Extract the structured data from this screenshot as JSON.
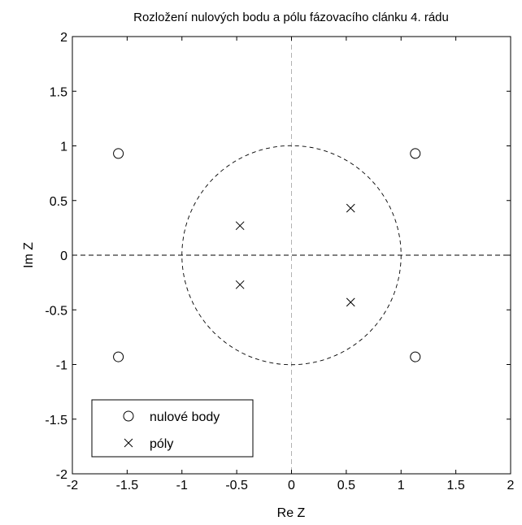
{
  "chart_data": {
    "type": "scatter",
    "title": "Rozložení nulových bodu a pólu fázovacího clánku 4. rádu",
    "xlabel": "Re Z",
    "ylabel": "Im Z",
    "xlim": [
      -2,
      2
    ],
    "ylim": [
      -2,
      2
    ],
    "xticks": [
      -2,
      -1.5,
      -1,
      -0.5,
      0,
      0.5,
      1,
      1.5,
      2
    ],
    "yticks": [
      -2,
      -1.5,
      -1,
      -0.5,
      0,
      0.5,
      1,
      1.5,
      2
    ],
    "grid": false,
    "unit_circle": true,
    "axes_lines_dashed": true,
    "legend_position": "bottom-left",
    "series": [
      {
        "name": "nulové body",
        "marker": "circle",
        "color": "#000000",
        "x": [
          -1.58,
          -1.58,
          1.13,
          1.13
        ],
        "y": [
          0.93,
          -0.93,
          0.93,
          -0.93
        ]
      },
      {
        "name": "póly",
        "marker": "x",
        "color": "#000000",
        "x": [
          -0.47,
          -0.47,
          0.54,
          0.54
        ],
        "y": [
          0.27,
          -0.27,
          0.43,
          -0.43
        ]
      }
    ]
  }
}
